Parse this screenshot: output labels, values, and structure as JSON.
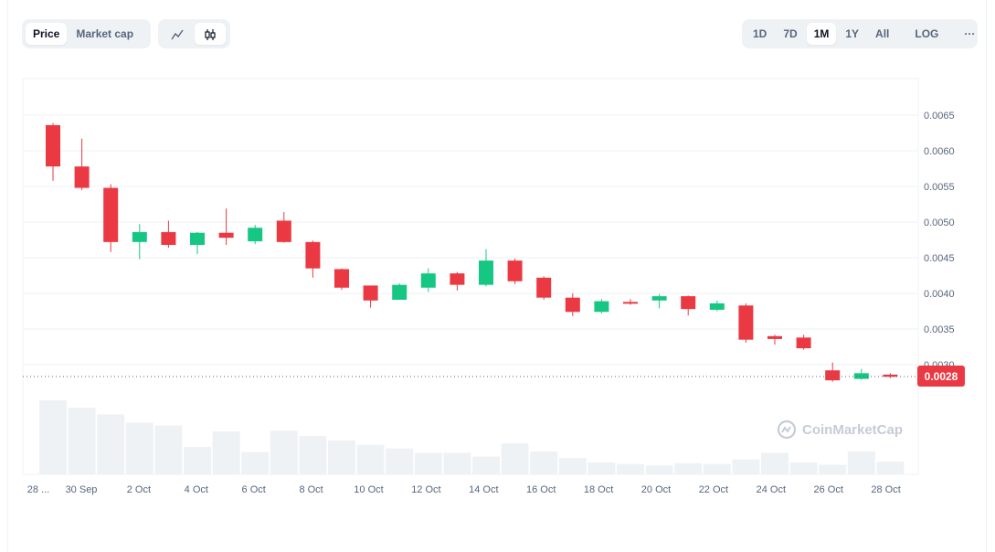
{
  "controls": {
    "metric_tabs": [
      {
        "label": "Price",
        "active": true
      },
      {
        "label": "Market cap",
        "active": false
      }
    ],
    "chart_type_icons": [
      {
        "icon": "line-chart-icon",
        "active": false
      },
      {
        "icon": "candlestick-icon",
        "active": true
      }
    ],
    "ranges": [
      {
        "label": "1D",
        "active": false
      },
      {
        "label": "7D",
        "active": false
      },
      {
        "label": "1M",
        "active": true
      },
      {
        "label": "1Y",
        "active": false
      },
      {
        "label": "All",
        "active": false
      }
    ],
    "log_label": "LOG",
    "more_label": "···"
  },
  "watermark": "CoinMarketCap",
  "colors": {
    "up": "#16c784",
    "down": "#ea3943",
    "volume": "#eff2f5",
    "grid": "#eff2f5",
    "axis_text": "#58667e"
  },
  "chart_data": {
    "type": "candlestick",
    "x_tick_labels": [
      "28 ...",
      "30 Sep",
      "2 Oct",
      "4 Oct",
      "6 Oct",
      "8 Oct",
      "10 Oct",
      "12 Oct",
      "14 Oct",
      "16 Oct",
      "18 Oct",
      "20 Oct",
      "22 Oct",
      "24 Oct",
      "26 Oct",
      "28 Oct"
    ],
    "y_tick_labels": [
      "0.0065",
      "0.0060",
      "0.0055",
      "0.0050",
      "0.0045",
      "0.0040",
      "0.0035",
      "0.0030"
    ],
    "ylim": [
      0.0029,
      0.007
    ],
    "current_price_label": "0.0028",
    "current_price": 0.00282,
    "candles": [
      {
        "o": 0.00636,
        "h": 0.00639,
        "l": 0.00558,
        "c": 0.00578
      },
      {
        "o": 0.00578,
        "h": 0.00617,
        "l": 0.00545,
        "c": 0.00548
      },
      {
        "o": 0.00548,
        "h": 0.00553,
        "l": 0.00458,
        "c": 0.00472
      },
      {
        "o": 0.00472,
        "h": 0.00497,
        "l": 0.00448,
        "c": 0.00486
      },
      {
        "o": 0.00486,
        "h": 0.00502,
        "l": 0.00464,
        "c": 0.00468
      },
      {
        "o": 0.00468,
        "h": 0.00486,
        "l": 0.00455,
        "c": 0.00485
      },
      {
        "o": 0.00485,
        "h": 0.00519,
        "l": 0.00468,
        "c": 0.00478
      },
      {
        "o": 0.00473,
        "h": 0.00496,
        "l": 0.00469,
        "c": 0.00492
      },
      {
        "o": 0.00502,
        "h": 0.00514,
        "l": 0.00471,
        "c": 0.00472
      },
      {
        "o": 0.00472,
        "h": 0.00474,
        "l": 0.00422,
        "c": 0.00435
      },
      {
        "o": 0.00434,
        "h": 0.00435,
        "l": 0.00405,
        "c": 0.00408
      },
      {
        "o": 0.00411,
        "h": 0.00411,
        "l": 0.0038,
        "c": 0.0039
      },
      {
        "o": 0.00391,
        "h": 0.00414,
        "l": 0.00391,
        "c": 0.00412
      },
      {
        "o": 0.00408,
        "h": 0.00435,
        "l": 0.00402,
        "c": 0.00428
      },
      {
        "o": 0.00428,
        "h": 0.0043,
        "l": 0.00404,
        "c": 0.00412
      },
      {
        "o": 0.00412,
        "h": 0.00462,
        "l": 0.0041,
        "c": 0.00446
      },
      {
        "o": 0.00446,
        "h": 0.00449,
        "l": 0.00413,
        "c": 0.00417
      },
      {
        "o": 0.00422,
        "h": 0.00424,
        "l": 0.00391,
        "c": 0.00394
      },
      {
        "o": 0.00394,
        "h": 0.004,
        "l": 0.00368,
        "c": 0.00374
      },
      {
        "o": 0.00374,
        "h": 0.00392,
        "l": 0.00372,
        "c": 0.00389
      },
      {
        "o": 0.00388,
        "h": 0.00392,
        "l": 0.00384,
        "c": 0.00386
      },
      {
        "o": 0.0039,
        "h": 0.00399,
        "l": 0.00379,
        "c": 0.00396
      },
      {
        "o": 0.00396,
        "h": 0.00397,
        "l": 0.00369,
        "c": 0.00378
      },
      {
        "o": 0.00377,
        "h": 0.0039,
        "l": 0.00375,
        "c": 0.00386
      },
      {
        "o": 0.00383,
        "h": 0.00386,
        "l": 0.00331,
        "c": 0.00335
      },
      {
        "o": 0.0034,
        "h": 0.00342,
        "l": 0.00328,
        "c": 0.00336
      },
      {
        "o": 0.00338,
        "h": 0.00342,
        "l": 0.00321,
        "c": 0.00323
      },
      {
        "o": 0.00292,
        "h": 0.00303,
        "l": 0.00276,
        "c": 0.00278
      },
      {
        "o": 0.0028,
        "h": 0.00294,
        "l": 0.00279,
        "c": 0.00288
      },
      {
        "o": 0.00286,
        "h": 0.00288,
        "l": 0.00281,
        "c": 0.00283
      }
    ],
    "volume": [
      1.0,
      0.9,
      0.81,
      0.7,
      0.66,
      0.37,
      0.58,
      0.3,
      0.59,
      0.52,
      0.46,
      0.4,
      0.35,
      0.29,
      0.29,
      0.24,
      0.42,
      0.31,
      0.22,
      0.16,
      0.14,
      0.12,
      0.15,
      0.14,
      0.2,
      0.29,
      0.16,
      0.13,
      0.31,
      0.17
    ]
  }
}
